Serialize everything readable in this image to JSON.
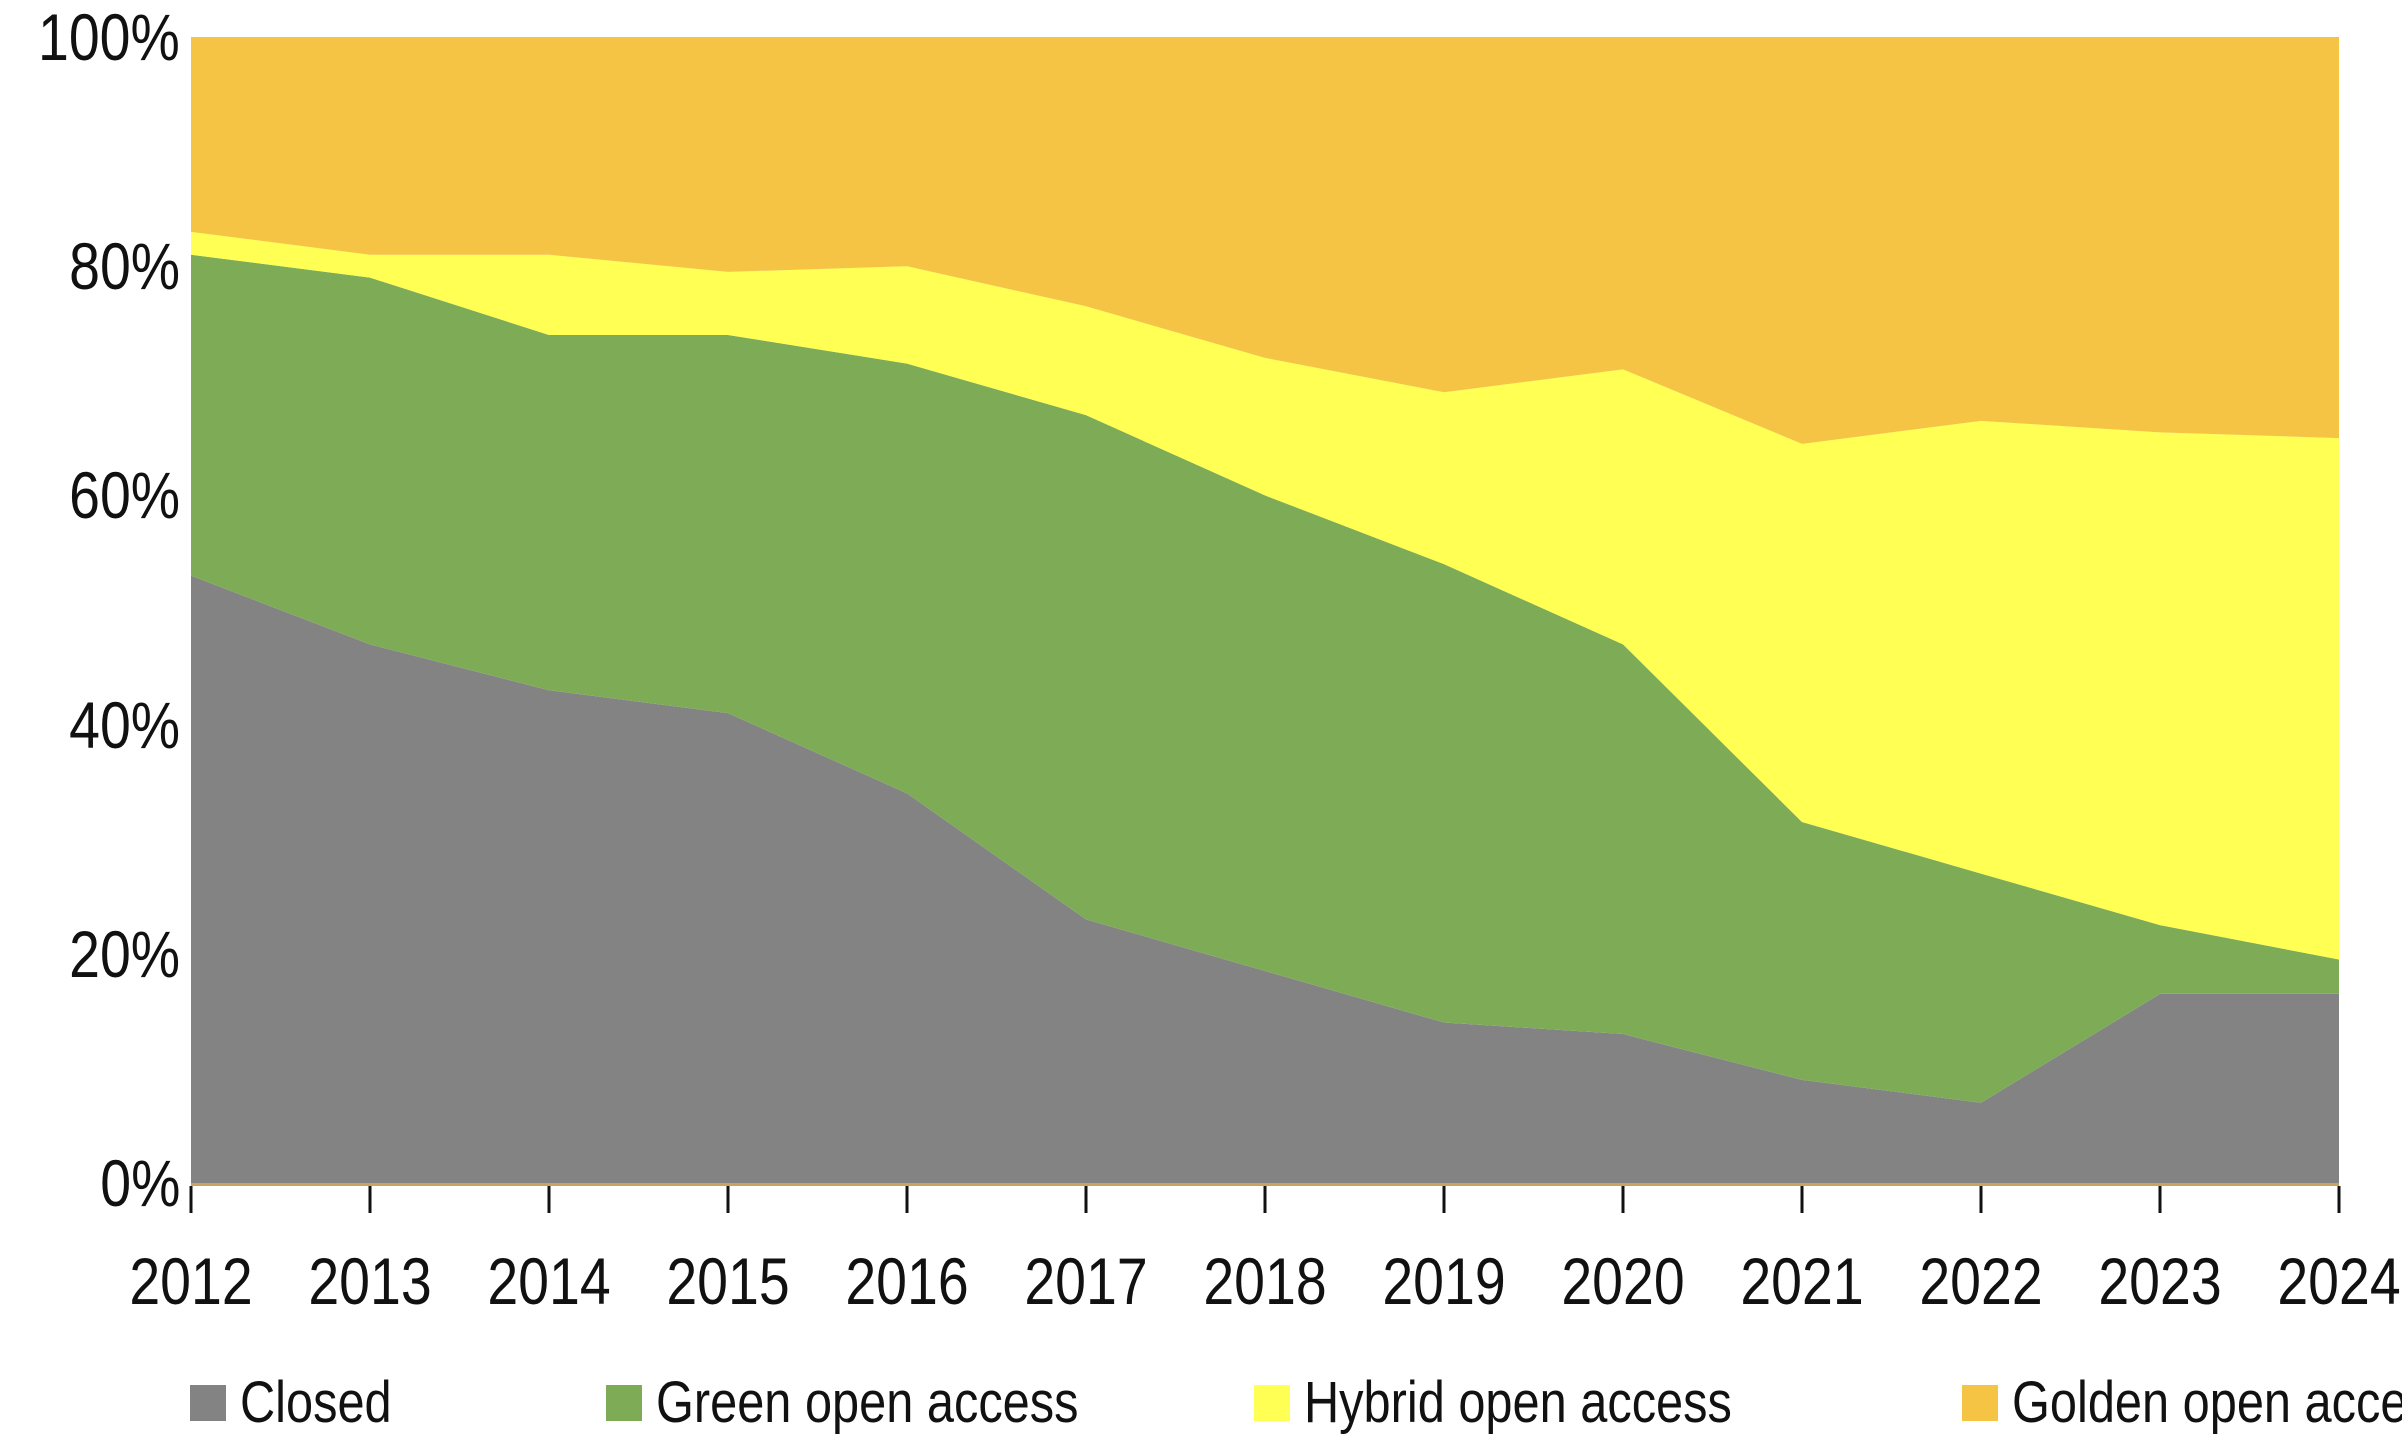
{
  "chart_data": {
    "type": "area",
    "stacked": true,
    "percent_stacked": true,
    "title": "",
    "xlabel": "",
    "ylabel": "",
    "x": [
      2012,
      2013,
      2014,
      2015,
      2016,
      2017,
      2018,
      2019,
      2020,
      2021,
      2022,
      2023,
      2024
    ],
    "series": [
      {
        "name": "Closed",
        "color": "#838383",
        "values": [
          53,
          47,
          43,
          41,
          34,
          23,
          18.5,
          14,
          13,
          9,
          7,
          16.5,
          16.5
        ]
      },
      {
        "name": "Green open access",
        "color": "#7EAC56",
        "values": [
          28,
          32,
          31,
          33,
          37.5,
          44,
          41.5,
          40,
          34,
          22.5,
          20,
          6,
          3
        ]
      },
      {
        "name": "Hybrid open access",
        "color": "#FFFF54",
        "values": [
          2,
          2,
          7,
          5.5,
          8.5,
          9.5,
          12,
          15,
          24,
          33,
          39.5,
          43,
          45.5
        ]
      },
      {
        "name": "Golden open access",
        "color": "#F5C444",
        "values": [
          17,
          19,
          19,
          20.5,
          20,
          23.5,
          28,
          31,
          29,
          35.5,
          33.5,
          34.5,
          35
        ]
      }
    ],
    "ylim": [
      0,
      100
    ],
    "y_ticks": [
      {
        "value": 0,
        "label": "0%"
      },
      {
        "value": 20,
        "label": "20%"
      },
      {
        "value": 40,
        "label": "40%"
      },
      {
        "value": 60,
        "label": "60%"
      },
      {
        "value": 80,
        "label": "80%"
      },
      {
        "value": 100,
        "label": "100%"
      }
    ],
    "x_tick_labels": [
      "2012",
      "2013",
      "2014",
      "2015",
      "2016",
      "2017",
      "2018",
      "2019",
      "2020",
      "2021",
      "2022",
      "2023",
      "2024"
    ],
    "grid": false,
    "legend_position": "bottom",
    "axis_line_color": "#C8A45C",
    "tick_color": "#111111",
    "background_color": "#FFFFFF"
  }
}
